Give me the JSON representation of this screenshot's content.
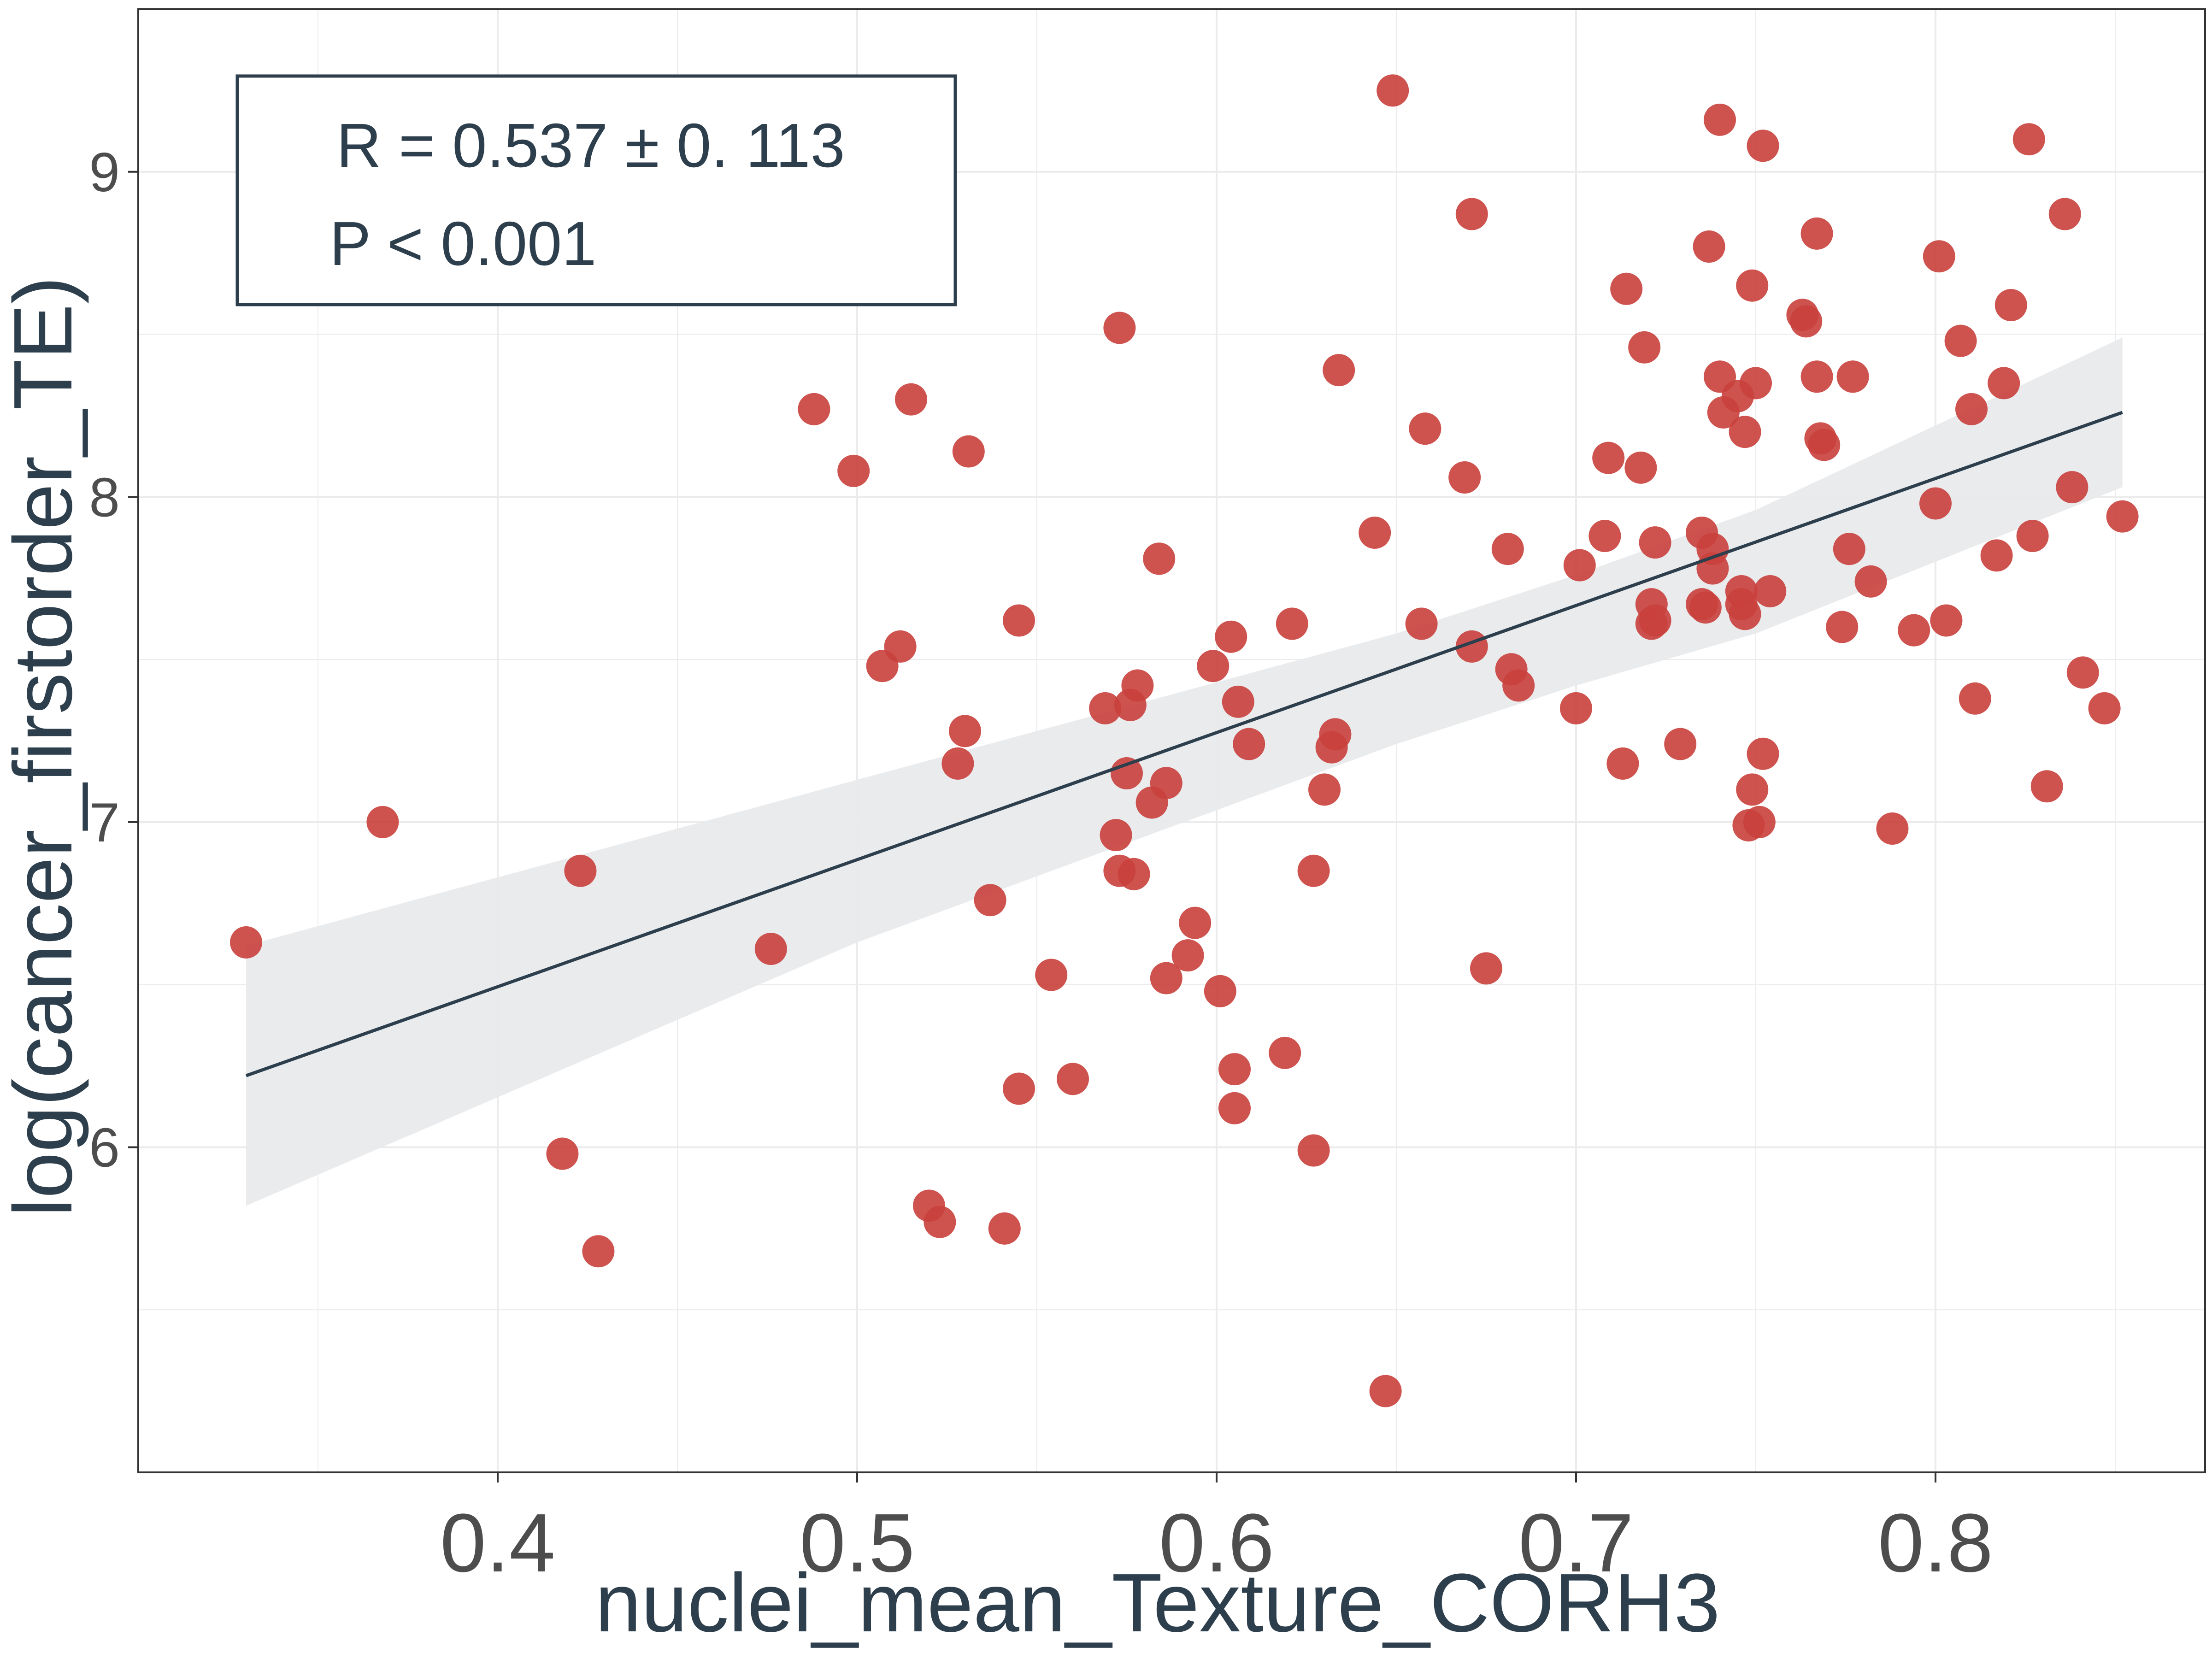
{
  "chart_data": {
    "type": "scatter",
    "title": "",
    "xlabel": "nuclei_mean_Texture_CORH3",
    "ylabel": "log(cancer_firstorder_TE)",
    "xlim": [
      0.3,
      0.875
    ],
    "ylim": [
      5.0,
      9.5
    ],
    "grid": true,
    "x_ticks": [
      0.4,
      0.5,
      0.6,
      0.7,
      0.8
    ],
    "x_tick_labels": [
      "0.4",
      "0.5",
      "0.6",
      "0.7",
      "0.8"
    ],
    "y_ticks": [
      6,
      7,
      8,
      9
    ],
    "y_tick_labels": [
      "6",
      "7",
      "8",
      "9"
    ],
    "annotation": {
      "line1": "R = 0.537 ± 0. 113",
      "line2": "P < 0.001"
    },
    "fit_line": {
      "x": [
        0.33,
        0.852
      ],
      "y": [
        6.22,
        8.26
      ]
    },
    "confidence_band": {
      "x": [
        0.33,
        0.5,
        0.65,
        0.7,
        0.75,
        0.852
      ],
      "upper": [
        6.62,
        7.13,
        7.58,
        7.76,
        7.96,
        8.49
      ],
      "lower": [
        5.82,
        6.63,
        7.24,
        7.42,
        7.58,
        8.03
      ]
    },
    "colors": {
      "points": "#c9403c",
      "fit_line": "#2d3e4c",
      "band": "#e8eaec",
      "grid": "#ebebeb",
      "axis": "#333333",
      "text": "#2d3e4c",
      "tick_labels": "#4d4d4d"
    },
    "series": [
      {
        "points": [
          [
            0.33,
            6.63
          ],
          [
            0.368,
            7.0
          ],
          [
            0.418,
            5.98
          ],
          [
            0.423,
            6.85
          ],
          [
            0.428,
            5.68
          ],
          [
            0.476,
            6.61
          ],
          [
            0.488,
            8.27
          ],
          [
            0.499,
            8.08
          ],
          [
            0.507,
            7.48
          ],
          [
            0.512,
            7.54
          ],
          [
            0.515,
            8.3
          ],
          [
            0.52,
            5.82
          ],
          [
            0.523,
            5.77
          ],
          [
            0.528,
            7.18
          ],
          [
            0.53,
            7.28
          ],
          [
            0.531,
            8.14
          ],
          [
            0.537,
            6.76
          ],
          [
            0.541,
            5.75
          ],
          [
            0.545,
            6.18
          ],
          [
            0.545,
            7.62
          ],
          [
            0.554,
            6.53
          ],
          [
            0.56,
            6.21
          ],
          [
            0.569,
            7.35
          ],
          [
            0.572,
            6.96
          ],
          [
            0.573,
            8.52
          ],
          [
            0.573,
            6.85
          ],
          [
            0.575,
            7.15
          ],
          [
            0.576,
            7.36
          ],
          [
            0.577,
            6.84
          ],
          [
            0.578,
            7.42
          ],
          [
            0.582,
            7.06
          ],
          [
            0.584,
            7.81
          ],
          [
            0.586,
            6.52
          ],
          [
            0.586,
            7.12
          ],
          [
            0.592,
            6.59
          ],
          [
            0.594,
            6.69
          ],
          [
            0.599,
            7.48
          ],
          [
            0.601,
            6.48
          ],
          [
            0.604,
            7.57
          ],
          [
            0.605,
            6.12
          ],
          [
            0.605,
            6.24
          ],
          [
            0.606,
            7.37
          ],
          [
            0.609,
            7.24
          ],
          [
            0.619,
            6.29
          ],
          [
            0.621,
            7.61
          ],
          [
            0.627,
            5.99
          ],
          [
            0.627,
            6.85
          ],
          [
            0.63,
            7.1
          ],
          [
            0.632,
            7.23
          ],
          [
            0.633,
            7.27
          ],
          [
            0.634,
            8.39
          ],
          [
            0.644,
            7.89
          ],
          [
            0.647,
            5.25
          ],
          [
            0.649,
            9.25
          ],
          [
            0.657,
            7.61
          ],
          [
            0.658,
            8.21
          ],
          [
            0.669,
            8.06
          ],
          [
            0.671,
            7.54
          ],
          [
            0.671,
            8.87
          ],
          [
            0.675,
            6.55
          ],
          [
            0.681,
            7.84
          ],
          [
            0.682,
            7.47
          ],
          [
            0.684,
            7.42
          ],
          [
            0.7,
            7.35
          ],
          [
            0.701,
            7.79
          ],
          [
            0.708,
            7.88
          ],
          [
            0.709,
            8.12
          ],
          [
            0.713,
            7.18
          ],
          [
            0.714,
            8.64
          ],
          [
            0.718,
            8.09
          ],
          [
            0.719,
            8.46
          ],
          [
            0.721,
            7.61
          ],
          [
            0.721,
            7.67
          ],
          [
            0.722,
            7.86
          ],
          [
            0.722,
            7.62
          ],
          [
            0.729,
            7.24
          ],
          [
            0.735,
            7.67
          ],
          [
            0.735,
            7.89
          ],
          [
            0.736,
            7.66
          ],
          [
            0.737,
            8.77
          ],
          [
            0.738,
            7.84
          ],
          [
            0.738,
            7.78
          ],
          [
            0.74,
            8.37
          ],
          [
            0.74,
            9.16
          ],
          [
            0.741,
            8.26
          ],
          [
            0.745,
            8.31
          ],
          [
            0.746,
            7.67
          ],
          [
            0.746,
            7.71
          ],
          [
            0.747,
            7.64
          ],
          [
            0.747,
            8.2
          ],
          [
            0.748,
            6.99
          ],
          [
            0.749,
            7.1
          ],
          [
            0.749,
            8.65
          ],
          [
            0.75,
            8.35
          ],
          [
            0.751,
            7.0
          ],
          [
            0.752,
            7.21
          ],
          [
            0.752,
            9.08
          ],
          [
            0.754,
            7.71
          ],
          [
            0.763,
            8.56
          ],
          [
            0.764,
            8.54
          ],
          [
            0.767,
            8.37
          ],
          [
            0.767,
            8.81
          ],
          [
            0.768,
            8.18
          ],
          [
            0.769,
            8.16
          ],
          [
            0.774,
            7.6
          ],
          [
            0.776,
            7.84
          ],
          [
            0.777,
            8.37
          ],
          [
            0.782,
            7.74
          ],
          [
            0.788,
            6.98
          ],
          [
            0.794,
            7.59
          ],
          [
            0.8,
            7.98
          ],
          [
            0.801,
            8.74
          ],
          [
            0.803,
            7.62
          ],
          [
            0.807,
            8.48
          ],
          [
            0.81,
            8.27
          ],
          [
            0.811,
            7.38
          ],
          [
            0.817,
            7.82
          ],
          [
            0.819,
            8.35
          ],
          [
            0.821,
            8.59
          ],
          [
            0.826,
            9.1
          ],
          [
            0.827,
            7.88
          ],
          [
            0.831,
            7.11
          ],
          [
            0.836,
            8.87
          ],
          [
            0.838,
            8.03
          ],
          [
            0.841,
            7.46
          ],
          [
            0.847,
            7.35
          ],
          [
            0.852,
            7.94
          ]
        ]
      }
    ]
  }
}
